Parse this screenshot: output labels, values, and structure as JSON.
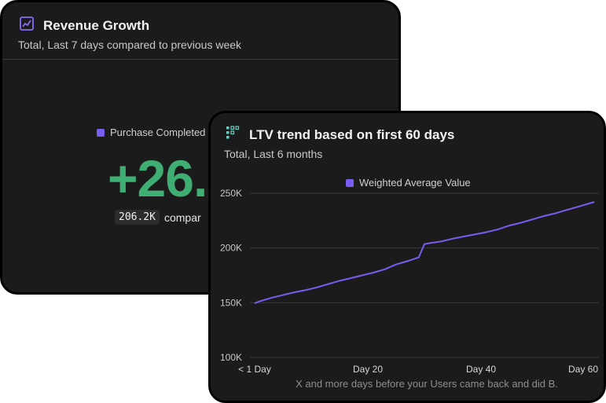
{
  "revenue_card": {
    "title": "Revenue Growth",
    "icon": "trend-chart-icon",
    "subtitle": "Total, Last 7 days compared to previous week",
    "legend_label": "Purchase Completed",
    "big_value": "+26.",
    "compare_value": "206.2K",
    "compare_text": "compar"
  },
  "ltv_card": {
    "title": "LTV trend based on first 60 days",
    "icon": "retention-grid-icon",
    "subtitle": "Total, Last 6 months",
    "legend_label": "Weighted Average Value"
  },
  "colors": {
    "accent_purple": "#7b5cf2",
    "positive_green": "#3fae72",
    "card_bg": "#1b1b1b"
  },
  "chart_data": {
    "type": "line",
    "xlabel": "X and more days before your Users came back and did B.",
    "ylabel": "",
    "x_tick_labels": [
      {
        "x": 0,
        "label": "< 1 Day"
      },
      {
        "x": 20,
        "label": "Day 20"
      },
      {
        "x": 40,
        "label": "Day 40"
      },
      {
        "x": 60,
        "label": "Day 60"
      }
    ],
    "y_ticks": [
      100000,
      150000,
      200000,
      250000
    ],
    "y_tick_labels": [
      "100K",
      "150K",
      "200K",
      "250K"
    ],
    "xlim": [
      0,
      60
    ],
    "ylim": [
      100000,
      250000
    ],
    "grid": true,
    "legend": "top-center",
    "series": [
      {
        "name": "Weighted Average Value",
        "color": "#7b5cf2",
        "x": [
          0,
          1,
          3,
          5,
          7,
          9,
          11,
          13,
          15,
          17,
          19,
          21,
          23,
          25,
          27,
          29,
          30,
          31,
          33,
          35,
          37,
          39,
          41,
          43,
          45,
          47,
          49,
          51,
          53,
          55,
          57,
          59,
          60
        ],
        "y": [
          149500,
          151500,
          154500,
          157000,
          159500,
          161500,
          164000,
          167000,
          170000,
          172500,
          175000,
          177500,
          180500,
          185000,
          188000,
          191500,
          203500,
          204500,
          206000,
          208500,
          210500,
          212500,
          214500,
          217000,
          220500,
          223000,
          226000,
          229000,
          231500,
          234500,
          237500,
          240500,
          242000
        ]
      }
    ]
  }
}
